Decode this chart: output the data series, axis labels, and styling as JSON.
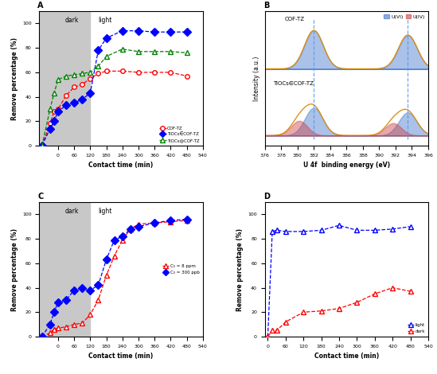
{
  "panel_A": {
    "dark_x_end": 120,
    "x_cof": [
      -60,
      -30,
      -15,
      0,
      30,
      60,
      90,
      120,
      150,
      180,
      240,
      300,
      360,
      420,
      480
    ],
    "y_cof": [
      0,
      18,
      28,
      30,
      41,
      48,
      50,
      55,
      59,
      61,
      61,
      60,
      60,
      60,
      57
    ],
    "x_tiocs_in": [
      -60,
      -30,
      -15,
      0,
      30,
      60,
      90,
      120,
      150,
      180,
      240,
      300,
      360,
      420,
      480
    ],
    "y_tiocs_in": [
      0,
      14,
      20,
      28,
      33,
      35,
      38,
      43,
      78,
      88,
      94,
      94,
      93,
      93,
      93
    ],
    "x_tiocs_at": [
      -60,
      -30,
      -15,
      0,
      30,
      60,
      90,
      120,
      150,
      180,
      240,
      300,
      360,
      420,
      480
    ],
    "y_tiocs_at": [
      0,
      30,
      43,
      54,
      57,
      58,
      59,
      60,
      65,
      73,
      79,
      77,
      77,
      77,
      76
    ],
    "xlabel": "Contact time (min)",
    "ylabel": "Remove percentage (%)",
    "title": "A",
    "leg1": "COF-TZ",
    "leg2": "TiOCs∈COF-TZ",
    "leg3": "TiOCs@COF-TZ",
    "ylim": [
      0,
      110
    ],
    "xlim": [
      -70,
      540
    ],
    "xticks": [
      0,
      60,
      120,
      180,
      240,
      300,
      360,
      420,
      480,
      540
    ]
  },
  "panel_C": {
    "dark_x_end": 120,
    "x_8ppm": [
      -60,
      -30,
      -15,
      0,
      30,
      60,
      90,
      120,
      150,
      180,
      210,
      240,
      270,
      300,
      360,
      420,
      480
    ],
    "y_8ppm": [
      0,
      3,
      6,
      7,
      8,
      10,
      11,
      18,
      30,
      50,
      66,
      79,
      88,
      92,
      93,
      94,
      95
    ],
    "x_300ppb": [
      -60,
      -30,
      -15,
      0,
      30,
      60,
      90,
      120,
      150,
      180,
      210,
      240,
      270,
      300,
      360,
      420,
      480
    ],
    "y_300ppb": [
      0,
      10,
      20,
      28,
      30,
      38,
      40,
      38,
      42,
      63,
      79,
      82,
      88,
      90,
      93,
      95,
      96
    ],
    "xlabel": "Contact time (min)",
    "ylabel": "Remove percentage (%)",
    "title": "C",
    "leg1": "C₀ = 8 ppm",
    "leg2": "C₀ = 300 ppb",
    "ylim": [
      0,
      110
    ],
    "xlim": [
      -70,
      540
    ],
    "xticks": [
      0,
      60,
      120,
      180,
      240,
      300,
      360,
      420,
      480,
      540
    ]
  },
  "panel_D": {
    "x_light": [
      0,
      15,
      30,
      60,
      120,
      180,
      240,
      300,
      360,
      420,
      480
    ],
    "y_light": [
      0,
      86,
      87,
      86,
      86,
      87,
      91,
      87,
      87,
      88,
      90
    ],
    "x_dark": [
      0,
      15,
      30,
      60,
      120,
      180,
      240,
      300,
      360,
      420,
      480
    ],
    "y_dark": [
      0,
      5,
      5,
      12,
      20,
      21,
      23,
      28,
      35,
      40,
      37
    ],
    "xlabel": "Contact time (min)",
    "ylabel": "Remove percentage (%)",
    "title": "D",
    "leg1": "light",
    "leg2": "dark",
    "ylim": [
      0,
      110
    ],
    "xlim": [
      -10,
      540
    ],
    "xticks": [
      0,
      60,
      120,
      180,
      240,
      300,
      360,
      420,
      480,
      540
    ]
  },
  "panel_B": {
    "xlabel": "U 4f  binding energy (eV)",
    "ylabel": "Intensity (a.u.)",
    "title": "B",
    "label_top": "COF-TZ",
    "label_bottom": "TiOCs∈COF-TZ",
    "vline1": 382.0,
    "vline2": 393.5,
    "xlim": [
      376,
      396
    ],
    "xticks": [
      376,
      378,
      380,
      382,
      384,
      386,
      388,
      390,
      392,
      394,
      396
    ]
  }
}
